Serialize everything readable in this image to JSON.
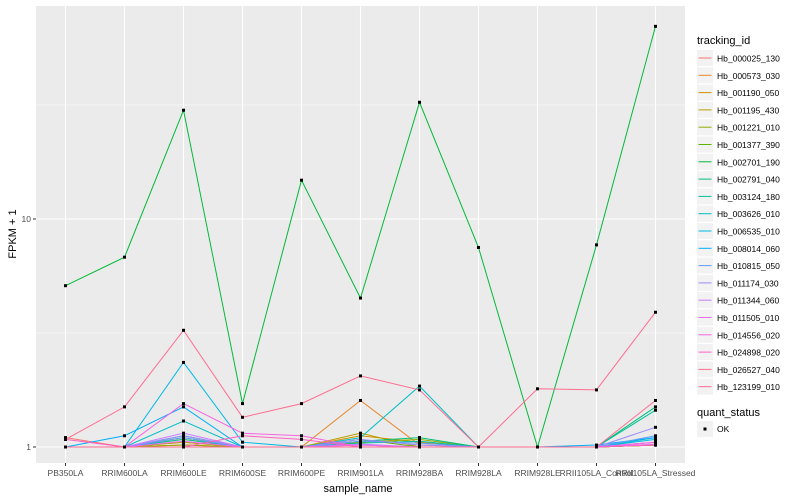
{
  "chart_data": {
    "type": "line",
    "xlabel": "sample_name",
    "ylabel": "FPKM + 1",
    "y_scale": "log10",
    "y_ticks": [
      1,
      10
    ],
    "y_tick_labels": [
      "1",
      "10"
    ],
    "categories": [
      "PB350LA",
      "RRIM600LA",
      "RRIM600LE",
      "RRIM600SE",
      "RRIM600PE",
      "RRIM901LA",
      "RRIM928BA",
      "RRIM928LA",
      "RRIM928LE",
      "RRII105LA_Control",
      "RRII105LA_Stressed"
    ],
    "legend_color_title": "tracking_id",
    "legend_shape_title": "quant_status",
    "legend_shape_label": "OK",
    "series": [
      {
        "name": "Hb_000025_130",
        "color": "#F8766D",
        "values": [
          1.1,
          1.0,
          1.05,
          1.0,
          1.0,
          1.02,
          1.0,
          1.0,
          1.0,
          1.0,
          1.05
        ]
      },
      {
        "name": "Hb_000573_030",
        "color": "#E88526",
        "values": [
          1.0,
          1.0,
          1.02,
          1.0,
          1.0,
          1.6,
          1.02,
          1.0,
          1.0,
          1.0,
          1.02
        ]
      },
      {
        "name": "Hb_001190_050",
        "color": "#D39200",
        "values": [
          1.0,
          1.0,
          1.08,
          1.0,
          1.0,
          1.12,
          1.05,
          1.0,
          1.0,
          1.0,
          1.02
        ]
      },
      {
        "name": "Hb_001195_430",
        "color": "#B79F00",
        "values": [
          1.0,
          1.0,
          1.05,
          1.0,
          1.0,
          1.15,
          1.0,
          1.0,
          1.0,
          1.0,
          1.02
        ]
      },
      {
        "name": "Hb_001221_010",
        "color": "#93AA00",
        "values": [
          1.0,
          1.0,
          1.02,
          1.0,
          1.0,
          1.05,
          1.08,
          1.0,
          1.0,
          1.0,
          1.02
        ]
      },
      {
        "name": "Hb_001377_390",
        "color": "#5EB300",
        "values": [
          1.0,
          1.0,
          1.1,
          1.0,
          1.0,
          1.08,
          1.0,
          1.0,
          1.0,
          1.0,
          1.02
        ]
      },
      {
        "name": "Hb_002701_190",
        "color": "#00BA38",
        "values": [
          5.1,
          6.8,
          30.0,
          1.55,
          14.8,
          4.5,
          32.5,
          7.5,
          1.0,
          7.7,
          70.0
        ]
      },
      {
        "name": "Hb_002791_040",
        "color": "#00BF74",
        "values": [
          1.0,
          1.0,
          1.12,
          1.0,
          1.0,
          1.06,
          1.1,
          1.0,
          1.0,
          1.0,
          1.5
        ]
      },
      {
        "name": "Hb_003124_180",
        "color": "#00C19F",
        "values": [
          1.0,
          1.0,
          1.08,
          1.0,
          1.0,
          1.04,
          1.06,
          1.0,
          1.0,
          1.0,
          1.45
        ]
      },
      {
        "name": "Hb_003626_010",
        "color": "#00BFC4",
        "values": [
          1.0,
          1.0,
          1.3,
          1.0,
          1.0,
          1.1,
          1.85,
          1.0,
          1.0,
          1.0,
          1.1
        ]
      },
      {
        "name": "Hb_006535_010",
        "color": "#00B9E3",
        "values": [
          1.0,
          1.0,
          2.35,
          1.05,
          1.0,
          1.0,
          1.0,
          1.0,
          1.0,
          1.0,
          1.08
        ]
      },
      {
        "name": "Hb_008014_060",
        "color": "#00ADFA",
        "values": [
          1.0,
          1.12,
          1.5,
          1.0,
          1.0,
          1.0,
          1.0,
          1.0,
          1.0,
          1.02,
          1.1
        ]
      },
      {
        "name": "Hb_010815_050",
        "color": "#619CFF",
        "values": [
          1.0,
          1.0,
          1.1,
          1.0,
          1.0,
          1.06,
          1.04,
          1.0,
          1.0,
          1.0,
          1.12
        ]
      },
      {
        "name": "Hb_011174_030",
        "color": "#9B8AFF",
        "values": [
          1.0,
          1.0,
          1.12,
          1.0,
          1.0,
          1.08,
          1.02,
          1.0,
          1.0,
          1.0,
          1.22
        ]
      },
      {
        "name": "Hb_011344_060",
        "color": "#C77CFF",
        "values": [
          1.0,
          1.0,
          1.15,
          1.0,
          1.0,
          1.03,
          1.0,
          1.0,
          1.0,
          1.0,
          1.05
        ]
      },
      {
        "name": "Hb_011505_010",
        "color": "#E76BF3",
        "values": [
          1.0,
          1.0,
          1.06,
          1.0,
          1.0,
          1.02,
          1.0,
          1.0,
          1.0,
          1.0,
          1.03
        ]
      },
      {
        "name": "Hb_014556_020",
        "color": "#F564E3",
        "values": [
          1.0,
          1.0,
          1.55,
          1.15,
          1.12,
          1.0,
          1.0,
          1.0,
          1.0,
          1.0,
          1.05
        ]
      },
      {
        "name": "Hb_024898_020",
        "color": "#FF61C3",
        "values": [
          1.08,
          1.0,
          1.0,
          1.12,
          1.08,
          1.0,
          1.0,
          1.0,
          1.0,
          1.0,
          1.02
        ]
      },
      {
        "name": "Hb_026527_040",
        "color": "#FF6C91",
        "values": [
          1.0,
          1.0,
          1.0,
          1.0,
          1.0,
          1.0,
          1.0,
          1.0,
          1.0,
          1.0,
          1.6
        ]
      },
      {
        "name": "Hb_123199_010",
        "color": "#FF6C91",
        "values": [
          1.08,
          1.5,
          3.25,
          1.35,
          1.55,
          2.05,
          1.78,
          1.0,
          1.8,
          1.78,
          3.9
        ]
      }
    ]
  }
}
